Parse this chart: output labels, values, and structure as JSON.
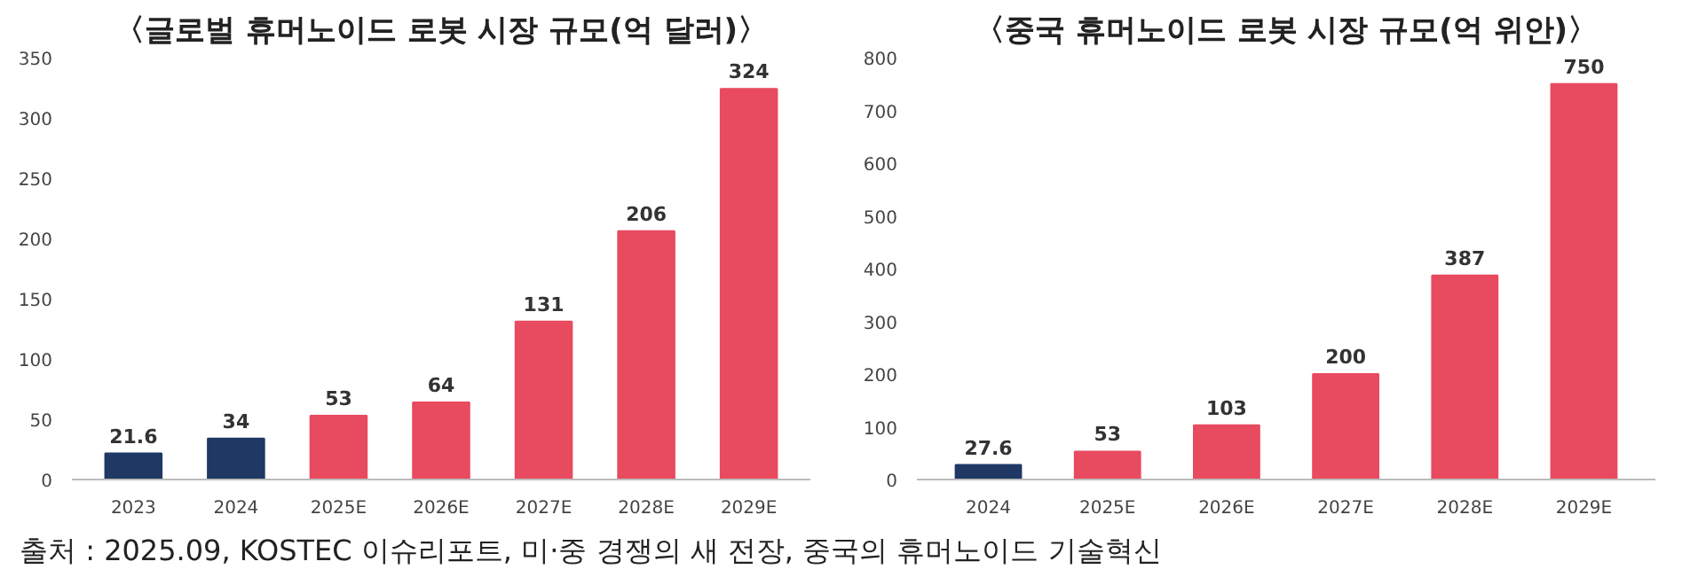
{
  "chart_data": [
    {
      "type": "bar",
      "title": "〈글로벌 휴머노이드 로봇 시장 규모(억 달러)〉",
      "categories": [
        "2023",
        "2024",
        "2025E",
        "2026E",
        "2027E",
        "2028E",
        "2029E"
      ],
      "values": [
        21.6,
        34,
        53,
        64,
        131,
        206,
        324
      ],
      "colors": [
        "#1f3864",
        "#1f3864",
        "#e84a5f",
        "#e84a5f",
        "#e84a5f",
        "#e84a5f",
        "#e84a5f"
      ],
      "ylim": [
        0,
        350
      ],
      "yticks": [
        0,
        50,
        100,
        150,
        200,
        250,
        300,
        350
      ],
      "grid": false,
      "data_labels": true,
      "annotations": [
        "출처 : 2025.09, KOSTEC 이슈리포트, 미·중 경쟁의 새 전장, 중국의 휴머노이드 기술혁신"
      ]
    },
    {
      "type": "bar",
      "title": "〈중국 휴머노이드 로봇 시장 규모(억 위안)〉",
      "categories": [
        "2024",
        "2025E",
        "2026E",
        "2027E",
        "2028E",
        "2029E"
      ],
      "values": [
        27.6,
        53,
        103,
        200,
        387,
        750
      ],
      "colors": [
        "#1f3864",
        "#e84a5f",
        "#e84a5f",
        "#e84a5f",
        "#e84a5f",
        "#e84a5f"
      ],
      "ylim": [
        0,
        800
      ],
      "yticks": [
        0,
        100,
        200,
        300,
        400,
        500,
        600,
        700,
        800
      ],
      "grid": false,
      "data_labels": true
    }
  ]
}
